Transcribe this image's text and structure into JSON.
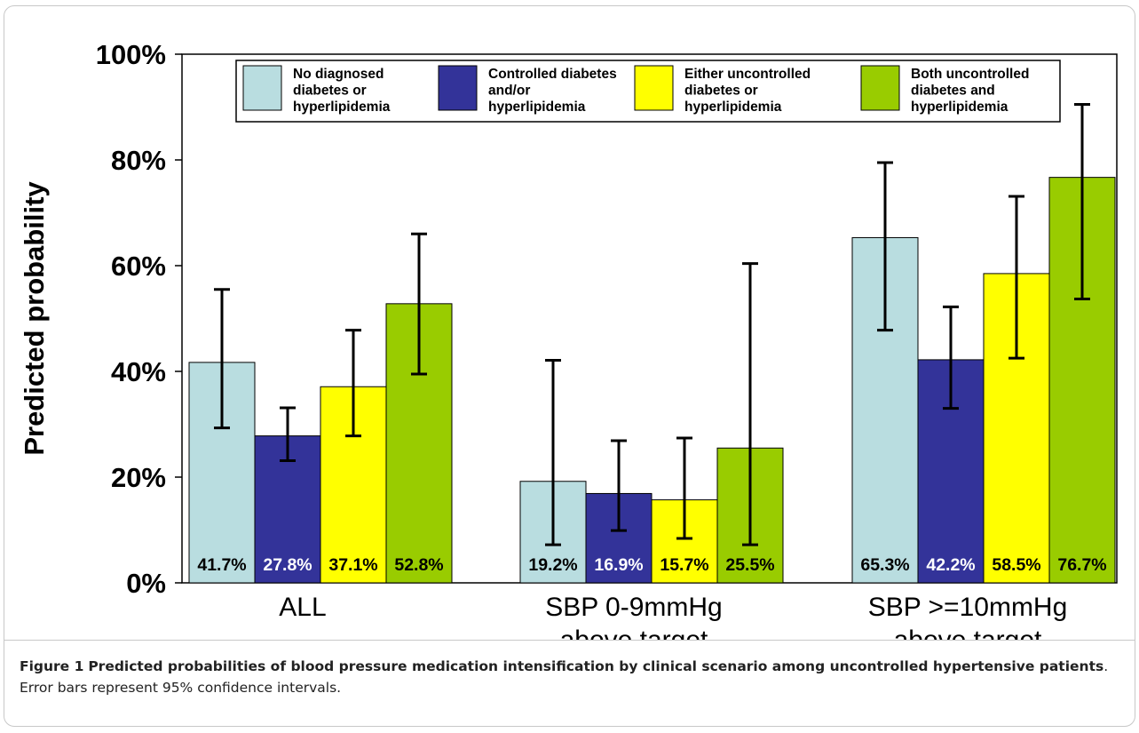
{
  "chart_data": {
    "type": "bar",
    "ylabel": "Predicted probability",
    "ylim": [
      0,
      100
    ],
    "yticks": [
      "0%",
      "20%",
      "40%",
      "60%",
      "80%",
      "100%"
    ],
    "ytick_values": [
      0,
      20,
      40,
      60,
      80,
      100
    ],
    "grid": false,
    "legend_position": "top",
    "categories": [
      [
        "ALL"
      ],
      [
        "SBP 0-9mmHg",
        "above target"
      ],
      [
        "SBP >=10mmHg",
        "above target"
      ]
    ],
    "series": [
      {
        "name": [
          "No diagnosed",
          "diabetes or",
          "hyperlipidemia"
        ],
        "color": "#b9dde0",
        "label_color": "#000000",
        "values": [
          41.7,
          19.2,
          65.3
        ],
        "labels": [
          "41.7%",
          "19.2%",
          "65.3%"
        ],
        "ci_low": [
          29.3,
          7.2,
          47.8
        ],
        "ci_high": [
          55.5,
          42.1,
          79.5
        ]
      },
      {
        "name": [
          "Controlled diabetes",
          "and/or",
          "hyperlipidemia"
        ],
        "color": "#333399",
        "label_color": "#ffffff",
        "values": [
          27.8,
          16.9,
          42.2
        ],
        "labels": [
          "27.8%",
          "16.9%",
          "42.2%"
        ],
        "ci_low": [
          23.1,
          9.9,
          33.0
        ],
        "ci_high": [
          33.1,
          26.9,
          52.2
        ]
      },
      {
        "name": [
          "Either uncontrolled",
          "diabetes or",
          "hyperlipidemia"
        ],
        "color": "#ffff00",
        "label_color": "#000000",
        "values": [
          37.1,
          15.7,
          58.5
        ],
        "labels": [
          "37.1%",
          "15.7%",
          "58.5%"
        ],
        "ci_low": [
          27.8,
          8.4,
          42.5
        ],
        "ci_high": [
          47.8,
          27.4,
          73.1
        ]
      },
      {
        "name": [
          "Both uncontrolled",
          "diabetes and",
          "hyperlipidemia"
        ],
        "color": "#99cc00",
        "label_color": "#000000",
        "values": [
          52.8,
          25.5,
          76.7
        ],
        "labels": [
          "52.8%",
          "25.5%",
          "76.7%"
        ],
        "ci_low": [
          39.5,
          7.2,
          53.7
        ],
        "ci_high": [
          66.0,
          60.4,
          90.5
        ]
      }
    ]
  },
  "caption": {
    "label": "Figure 1",
    "title": "Predicted probabilities of blood pressure medication intensification by clinical scenario among uncontrolled hypertensive patients",
    "text": ". Error bars represent 95% confidence intervals."
  }
}
